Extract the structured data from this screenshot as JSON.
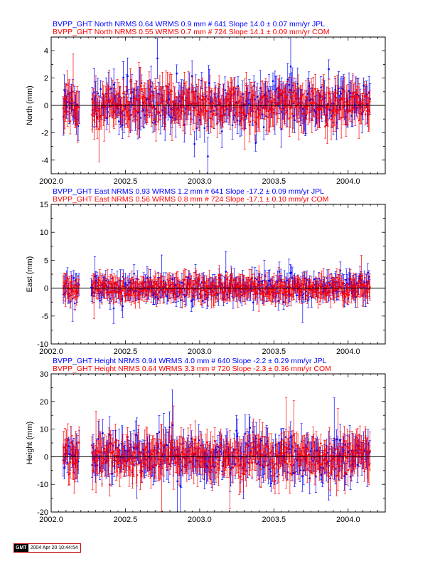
{
  "colors": {
    "jpl": "#0000ff",
    "com": "#ff0000",
    "axis": "#000000"
  },
  "chart_data": [
    {
      "type": "scatter",
      "ylabel": "North (mm)",
      "xlim": [
        2002.0,
        2004.25
      ],
      "ylim": [
        -5,
        5
      ],
      "yticks": [
        -4,
        -2,
        0,
        2,
        4
      ],
      "xticks": [
        "2002.0",
        "2002.5",
        "2003.0",
        "2003.5",
        "2004.0"
      ],
      "legend_lines": [
        "BVPP_GHT North NRMS 0.64 WRMS  0.9 mm # 641 Slope   14.0 ±  0.07 mm/yr JPL",
        "BVPP_GHT North NRMS 0.55 WRMS  0.7 mm # 724 Slope   14.1 ±  0.09 mm/yr COM"
      ],
      "series": [
        {
          "name": "JPL",
          "color": "#0000ff",
          "nrms": 0.64,
          "wrms_mm": 0.9,
          "n": 641,
          "slope": 14.0,
          "slope_err": 0.07,
          "scatter_mm": 0.9,
          "err_mm": 0.9
        },
        {
          "name": "COM",
          "color": "#ff0000",
          "nrms": 0.55,
          "wrms_mm": 0.7,
          "n": 724,
          "slope": 14.1,
          "slope_err": 0.09,
          "scatter_mm": 0.7,
          "err_mm": 1.0
        }
      ],
      "x_range": [
        2002.08,
        2004.15
      ],
      "data_gap": [
        2002.19,
        2002.27
      ]
    },
    {
      "type": "scatter",
      "ylabel": "East (mm)",
      "xlim": [
        2002.0,
        2004.25
      ],
      "ylim": [
        -10,
        15
      ],
      "yticks": [
        -10,
        -5,
        0,
        5,
        10,
        15
      ],
      "xticks": [
        "2002.0",
        "2002.5",
        "2003.0",
        "2003.5",
        "2004.0"
      ],
      "legend_lines": [
        "BVPP_GHT East NRMS 0.93 WRMS  1.2 mm # 641 Slope  -17.2 ±  0.09 mm/yr JPL",
        "BVPP_GHT East NRMS 0.56 WRMS  0.8 mm # 724 Slope  -17.1 ±  0.10 mm/yr COM"
      ],
      "series": [
        {
          "name": "JPL",
          "color": "#0000ff",
          "nrms": 0.93,
          "wrms_mm": 1.2,
          "n": 641,
          "slope": -17.2,
          "slope_err": 0.09,
          "scatter_mm": 1.2,
          "err_mm": 1.4
        },
        {
          "name": "COM",
          "color": "#ff0000",
          "nrms": 0.56,
          "wrms_mm": 0.8,
          "n": 724,
          "slope": -17.1,
          "slope_err": 0.1,
          "scatter_mm": 0.8,
          "err_mm": 1.6
        }
      ],
      "x_range": [
        2002.08,
        2004.15
      ],
      "data_gap": [
        2002.19,
        2002.27
      ]
    },
    {
      "type": "scatter",
      "ylabel": "Height (mm)",
      "xlim": [
        2002.0,
        2004.25
      ],
      "ylim": [
        -20,
        30
      ],
      "yticks": [
        -20,
        -10,
        0,
        10,
        20,
        30
      ],
      "xticks": [
        "2002.0",
        "2002.5",
        "2003.0",
        "2003.5",
        "2004.0"
      ],
      "legend_lines": [
        "BVPP_GHT Height NRMS 0.94 WRMS  4.0 mm # 640 Slope   -2.2 ±  0.29 mm/yr JPL",
        "BVPP_GHT Height NRMS 0.64 WRMS  3.3 mm # 720 Slope   -2.3 ±  0.36 mm/yr COM"
      ],
      "series": [
        {
          "name": "JPL",
          "color": "#0000ff",
          "nrms": 0.94,
          "wrms_mm": 4.0,
          "n": 640,
          "slope": -2.2,
          "slope_err": 0.29,
          "scatter_mm": 4.0,
          "err_mm": 4.5
        },
        {
          "name": "COM",
          "color": "#ff0000",
          "nrms": 0.64,
          "wrms_mm": 3.3,
          "n": 720,
          "slope": -2.3,
          "slope_err": 0.36,
          "scatter_mm": 3.3,
          "err_mm": 5.0
        }
      ],
      "x_range": [
        2002.08,
        2004.15
      ],
      "data_gap": [
        2002.19,
        2002.27
      ]
    }
  ],
  "footer": {
    "logo": "GMT",
    "timestamp": "2004 Apr 20 10:44:54"
  }
}
